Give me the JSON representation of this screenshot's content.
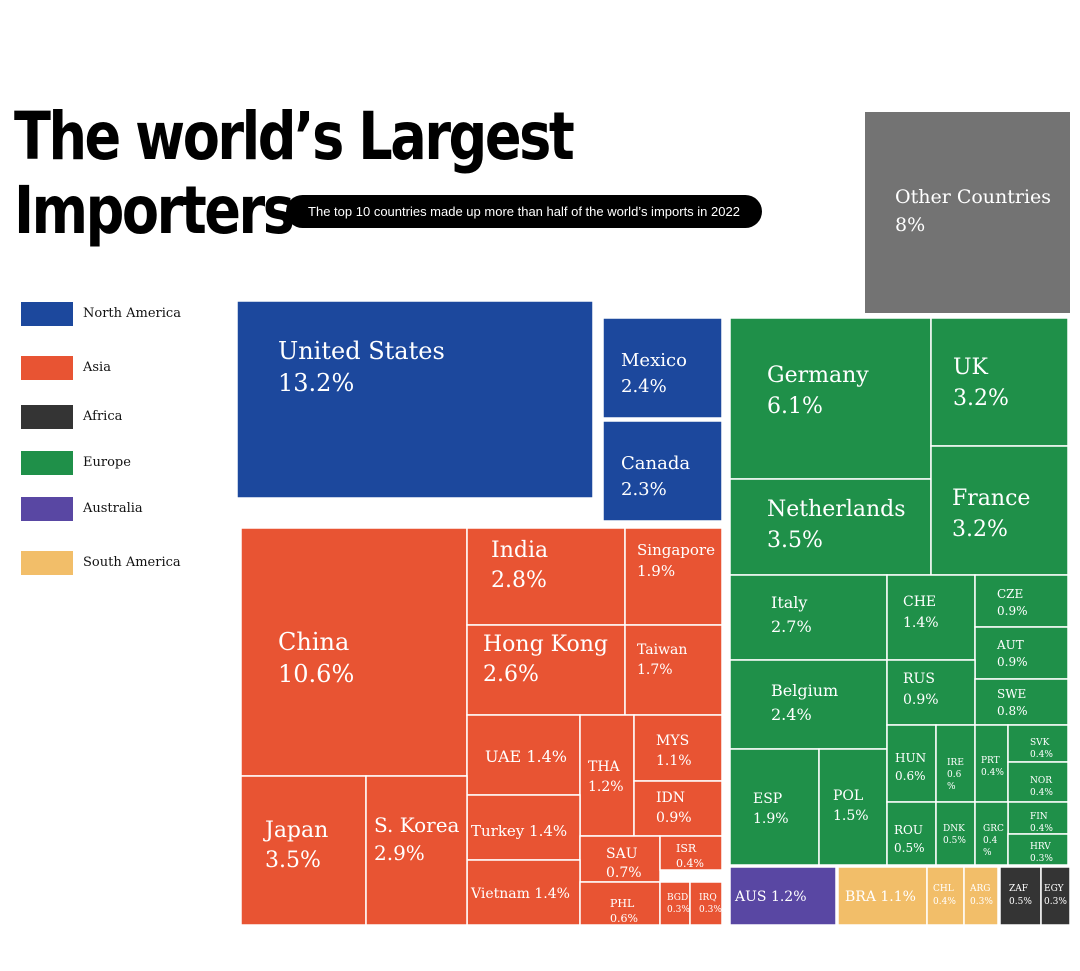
{
  "title": {
    "line1": "The world’s Largest",
    "line2": "Importers",
    "subtitle": "The top 10 countries made up more than half of the world’s imports in 2022"
  },
  "colors": {
    "North America": "#1c489d",
    "Asia": "#e85433",
    "Africa": "#343434",
    "Europe": "#1f9049",
    "Australia": "#5947a3",
    "South America": "#f2be69",
    "Other": "#737373"
  },
  "legend": [
    {
      "label": "North America",
      "region": "North America"
    },
    {
      "label": "Asia",
      "region": "Asia"
    },
    {
      "label": "Africa",
      "region": "Africa"
    },
    {
      "label": "Europe",
      "region": "Europe"
    },
    {
      "label": "Australia",
      "region": "Australia"
    },
    {
      "label": "South America",
      "region": "South America"
    }
  ],
  "chart_data": {
    "type": "treemap",
    "unit": "% of world imports",
    "items": [
      {
        "name": "United States",
        "value": 13.2,
        "label": [
          "United States",
          "13.2%"
        ],
        "region": "North America"
      },
      {
        "name": "Mexico",
        "value": 2.4,
        "label": [
          "Mexico",
          "2.4%"
        ],
        "region": "North America"
      },
      {
        "name": "Canada",
        "value": 2.3,
        "label": [
          "Canada",
          "2.3%"
        ],
        "region": "North America"
      },
      {
        "name": "China",
        "value": 10.6,
        "label": [
          "China",
          "10.6%"
        ],
        "region": "Asia"
      },
      {
        "name": "India",
        "value": 2.8,
        "label": [
          "India",
          "2.8%"
        ],
        "region": "Asia"
      },
      {
        "name": "Singapore",
        "value": 1.9,
        "label": [
          "Singapore",
          "1.9%"
        ],
        "region": "Asia"
      },
      {
        "name": "Hong Kong",
        "value": 2.6,
        "label": [
          "Hong Kong",
          "2.6%"
        ],
        "region": "Asia"
      },
      {
        "name": "Taiwan",
        "value": 1.7,
        "label": [
          "Taiwan",
          "1.7%"
        ],
        "region": "Asia"
      },
      {
        "name": "UAE",
        "value": 1.4,
        "label": [
          "UAE 1.4%"
        ],
        "region": "Asia"
      },
      {
        "name": "THA",
        "value": 1.2,
        "label": [
          "THA",
          "1.2%"
        ],
        "region": "Asia"
      },
      {
        "name": "MYS",
        "value": 1.1,
        "label": [
          "MYS",
          "1.1%"
        ],
        "region": "Asia"
      },
      {
        "name": "IDN",
        "value": 0.9,
        "label": [
          "IDN",
          "0.9%"
        ],
        "region": "Asia"
      },
      {
        "name": "Turkey",
        "value": 1.4,
        "label": [
          "Turkey 1.4%"
        ],
        "region": "Asia"
      },
      {
        "name": "SAU",
        "value": 0.7,
        "label": [
          "SAU",
          "0.7%"
        ],
        "region": "Asia"
      },
      {
        "name": "ISR",
        "value": 0.4,
        "label": [
          "ISR",
          "0.4%"
        ],
        "region": "Asia"
      },
      {
        "name": "Vietnam",
        "value": 1.4,
        "label": [
          "Vietnam 1.4%"
        ],
        "region": "Asia"
      },
      {
        "name": "PHL",
        "value": 0.6,
        "label": [
          "PHL",
          "0.6%"
        ],
        "region": "Asia"
      },
      {
        "name": "BGD",
        "value": 0.3,
        "label": [
          "BGD",
          "0.3%"
        ],
        "region": "Asia"
      },
      {
        "name": "IRQ",
        "value": 0.3,
        "label": [
          "IRQ",
          "0.3%"
        ],
        "region": "Asia"
      },
      {
        "name": "Japan",
        "value": 3.5,
        "label": [
          "Japan",
          "3.5%"
        ],
        "region": "Asia"
      },
      {
        "name": "S. Korea",
        "value": 2.9,
        "label": [
          "S. Korea",
          "2.9%"
        ],
        "region": "Asia"
      },
      {
        "name": "Germany",
        "value": 6.1,
        "label": [
          "Germany",
          "6.1%"
        ],
        "region": "Europe"
      },
      {
        "name": "UK",
        "value": 3.2,
        "label": [
          "UK",
          "3.2%"
        ],
        "region": "Europe"
      },
      {
        "name": "Netherlands",
        "value": 3.5,
        "label": [
          "Netherlands",
          "3.5%"
        ],
        "region": "Europe"
      },
      {
        "name": "France",
        "value": 3.2,
        "label": [
          "France",
          "3.2%"
        ],
        "region": "Europe"
      },
      {
        "name": "Italy",
        "value": 2.7,
        "label": [
          "Italy",
          "2.7%"
        ],
        "region": "Europe"
      },
      {
        "name": "CHE",
        "value": 1.4,
        "label": [
          "CHE",
          "1.4%"
        ],
        "region": "Europe"
      },
      {
        "name": "CZE",
        "value": 0.9,
        "label": [
          "CZE",
          "0.9%"
        ],
        "region": "Europe"
      },
      {
        "name": "AUT",
        "value": 0.9,
        "label": [
          "AUT",
          "0.9%"
        ],
        "region": "Europe"
      },
      {
        "name": "Belgium",
        "value": 2.4,
        "label": [
          "Belgium",
          "2.4%"
        ],
        "region": "Europe"
      },
      {
        "name": "RUS",
        "value": 0.9,
        "label": [
          "RUS",
          "0.9%"
        ],
        "region": "Europe"
      },
      {
        "name": "SWE",
        "value": 0.8,
        "label": [
          "SWE",
          "0.8%"
        ],
        "region": "Europe"
      },
      {
        "name": "ESP",
        "value": 1.9,
        "label": [
          "ESP",
          "1.9%"
        ],
        "region": "Europe"
      },
      {
        "name": "POL",
        "value": 1.5,
        "label": [
          "POL",
          "1.5%"
        ],
        "region": "Europe"
      },
      {
        "name": "HUN",
        "value": 0.6,
        "label": [
          "HUN",
          "0.6%"
        ],
        "region": "Europe"
      },
      {
        "name": "IRE",
        "value": 0.6,
        "label": [
          "IRE",
          "0.6",
          "%"
        ],
        "region": "Europe"
      },
      {
        "name": "PRT",
        "value": 0.4,
        "label": [
          "PRT",
          "0.4%"
        ],
        "region": "Europe"
      },
      {
        "name": "SVK",
        "value": 0.4,
        "label": [
          "SVK",
          "0.4%"
        ],
        "region": "Europe"
      },
      {
        "name": "NOR",
        "value": 0.4,
        "label": [
          "NOR",
          "0.4%"
        ],
        "region": "Europe"
      },
      {
        "name": "FIN",
        "value": 0.4,
        "label": [
          "FIN",
          "0.4%"
        ],
        "region": "Europe"
      },
      {
        "name": "ROU",
        "value": 0.5,
        "label": [
          "ROU",
          "0.5%"
        ],
        "region": "Europe"
      },
      {
        "name": "DNK",
        "value": 0.5,
        "label": [
          "DNK",
          "0.5%"
        ],
        "region": "Europe"
      },
      {
        "name": "GRC",
        "value": 0.4,
        "label": [
          "GRC",
          "0.4",
          "%"
        ],
        "region": "Europe"
      },
      {
        "name": "HRV",
        "value": 0.3,
        "label": [
          "HRV",
          "0.3%"
        ],
        "region": "Europe"
      },
      {
        "name": "AUS",
        "value": 1.2,
        "label": [
          "AUS 1.2%"
        ],
        "region": "Australia"
      },
      {
        "name": "BRA",
        "value": 1.1,
        "label": [
          "BRA 1.1%"
        ],
        "region": "South America"
      },
      {
        "name": "CHL",
        "value": 0.4,
        "label": [
          "CHL",
          "0.4%"
        ],
        "region": "South America"
      },
      {
        "name": "ARG",
        "value": 0.3,
        "label": [
          "ARG",
          "0.3%"
        ],
        "region": "South America"
      },
      {
        "name": "ZAF",
        "value": 0.5,
        "label": [
          "ZAF",
          "0.5%"
        ],
        "region": "Africa"
      },
      {
        "name": "EGY",
        "value": 0.3,
        "label": [
          "EGY",
          "0.3%"
        ],
        "region": "Africa"
      },
      {
        "name": "Other Countries",
        "value": 8,
        "label": [
          "Other Countries",
          "8%"
        ],
        "region": "Other"
      }
    ]
  }
}
